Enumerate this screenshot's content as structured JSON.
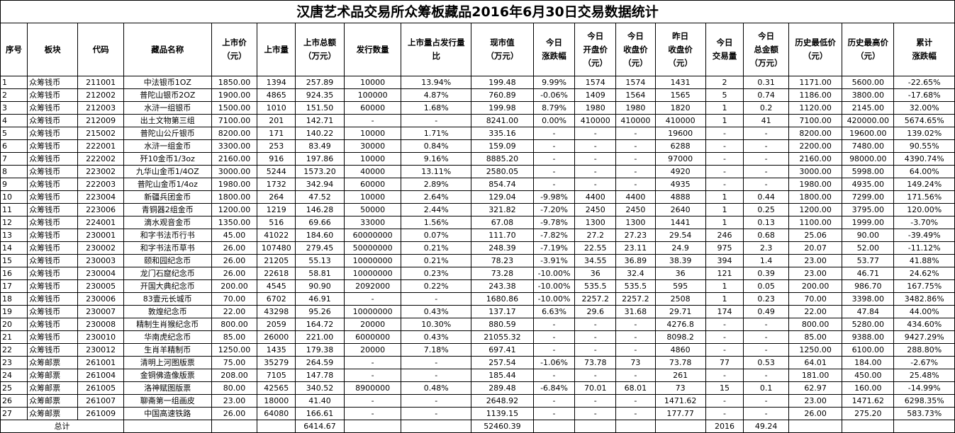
{
  "title": "汉唐艺术品交易所众筹板藏品2016年6月30日交易数据统计",
  "headers": [
    "序号",
    "板块",
    "代码",
    "藏品名称",
    "上市价\n（元）",
    "上市量",
    "上市总额\n（万元）",
    "发行数量",
    "上市量占发行量\n比",
    "现市值\n（万元）",
    "今日\n涨跌幅",
    "今日\n开盘价\n（元）",
    "今日\n收盘价\n（元）",
    "昨日\n收盘价\n（元）",
    "今日\n交易量",
    "今日\n总金额\n（万元）",
    "历史最低价\n（元）",
    "历史最高价\n（元）",
    "累计\n涨跌幅"
  ],
  "rows": [
    [
      "1",
      "众筹钱币",
      "211001",
      "中法银币1OZ",
      "1850.00",
      "1394",
      "257.89",
      "10000",
      "13.94%",
      "199.48",
      "9.99%",
      "1574",
      "1574",
      "1431",
      "2",
      "0.31",
      "1171.00",
      "5600.00",
      "-22.65%"
    ],
    [
      "2",
      "众筹钱币",
      "212002",
      "普陀山银币2OZ",
      "1900.00",
      "4865",
      "924.35",
      "100000",
      "4.87%",
      "760.89",
      "-0.06%",
      "1409",
      "1564",
      "1565",
      "5",
      "0.74",
      "1186.00",
      "3800.00",
      "-17.68%"
    ],
    [
      "3",
      "众筹钱币",
      "212003",
      "水浒一组银币",
      "1500.00",
      "1010",
      "151.50",
      "60000",
      "1.68%",
      "199.98",
      "8.79%",
      "1980",
      "1980",
      "1820",
      "1",
      "0.2",
      "1120.00",
      "2145.00",
      "32.00%"
    ],
    [
      "4",
      "众筹钱币",
      "212009",
      "出土文物第三组",
      "7100.00",
      "201",
      "142.71",
      "-",
      "-",
      "8241.00",
      "0.00%",
      "410000",
      "410000",
      "410000",
      "1",
      "41",
      "7100.00",
      "420000.00",
      "5674.65%"
    ],
    [
      "5",
      "众筹钱币",
      "215002",
      "普陀山公斤银币",
      "8200.00",
      "171",
      "140.22",
      "10000",
      "1.71%",
      "335.16",
      "-",
      "-",
      "-",
      "19600",
      "-",
      "-",
      "8200.00",
      "19600.00",
      "139.02%"
    ],
    [
      "6",
      "众筹钱币",
      "222001",
      "水浒一组金币",
      "3300.00",
      "253",
      "83.49",
      "30000",
      "0.84%",
      "159.09",
      "-",
      "-",
      "-",
      "6288",
      "-",
      "-",
      "2200.00",
      "7480.00",
      "90.55%"
    ],
    [
      "7",
      "众筹钱币",
      "222002",
      "歼10金币1/3oz",
      "2160.00",
      "916",
      "197.86",
      "10000",
      "9.16%",
      "8885.20",
      "-",
      "-",
      "-",
      "97000",
      "-",
      "-",
      "2160.00",
      "98000.00",
      "4390.74%"
    ],
    [
      "8",
      "众筹钱币",
      "223002",
      "九华山金币1/4OZ",
      "3000.00",
      "5244",
      "1573.20",
      "40000",
      "13.11%",
      "2580.05",
      "-",
      "-",
      "-",
      "4920",
      "-",
      "-",
      "3000.00",
      "5998.00",
      "64.00%"
    ],
    [
      "9",
      "众筹钱币",
      "222003",
      "普陀山金币1/4oz",
      "1980.00",
      "1732",
      "342.94",
      "60000",
      "2.89%",
      "854.74",
      "-",
      "-",
      "-",
      "4935",
      "-",
      "-",
      "1980.00",
      "4935.00",
      "149.24%"
    ],
    [
      "10",
      "众筹钱币",
      "223004",
      "新疆兵团金币",
      "1800.00",
      "264",
      "47.52",
      "10000",
      "2.64%",
      "129.04",
      "-9.98%",
      "4400",
      "4400",
      "4888",
      "1",
      "0.44",
      "1800.00",
      "7299.00",
      "171.56%"
    ],
    [
      "11",
      "众筹钱币",
      "223006",
      "青铜器2组金币",
      "1200.00",
      "1219",
      "146.28",
      "50000",
      "2.44%",
      "321.82",
      "-7.20%",
      "2450",
      "2450",
      "2640",
      "1",
      "0.25",
      "1200.00",
      "3795.00",
      "120.00%"
    ],
    [
      "12",
      "众筹钱币",
      "224001",
      "滴水观音金币",
      "1350.00",
      "516",
      "69.66",
      "33000",
      "1.56%",
      "67.08",
      "-9.78%",
      "1300",
      "1300",
      "1441",
      "1",
      "0.13",
      "1100.00",
      "1999.00",
      "-3.70%"
    ],
    [
      "13",
      "众筹钱币",
      "230001",
      "和字书法币行书",
      "45.00",
      "41022",
      "184.60",
      "60000000",
      "0.07%",
      "111.70",
      "-7.82%",
      "27.2",
      "27.23",
      "29.54",
      "246",
      "0.68",
      "25.06",
      "90.00",
      "-39.49%"
    ],
    [
      "14",
      "众筹钱币",
      "230002",
      "和字书法币草书",
      "26.00",
      "107480",
      "279.45",
      "50000000",
      "0.21%",
      "248.39",
      "-7.19%",
      "22.55",
      "23.11",
      "24.9",
      "975",
      "2.3",
      "20.07",
      "52.00",
      "-11.12%"
    ],
    [
      "15",
      "众筹钱币",
      "230003",
      "颐和园纪念币",
      "26.00",
      "21205",
      "55.13",
      "10000000",
      "0.21%",
      "78.23",
      "-3.91%",
      "34.55",
      "36.89",
      "38.39",
      "394",
      "1.4",
      "23.00",
      "53.77",
      "41.88%"
    ],
    [
      "16",
      "众筹钱币",
      "230004",
      "龙门石窟纪念币",
      "26.00",
      "22618",
      "58.81",
      "10000000",
      "0.23%",
      "73.28",
      "-10.00%",
      "36",
      "32.4",
      "36",
      "121",
      "0.39",
      "23.00",
      "46.71",
      "24.62%"
    ],
    [
      "17",
      "众筹钱币",
      "230005",
      "开国大典纪念币",
      "200.00",
      "4545",
      "90.90",
      "2092000",
      "0.22%",
      "243.38",
      "-10.00%",
      "535.5",
      "535.5",
      "595",
      "1",
      "0.05",
      "200.00",
      "986.70",
      "167.75%"
    ],
    [
      "18",
      "众筹钱币",
      "230006",
      "83壹元长城币",
      "70.00",
      "6702",
      "46.91",
      "-",
      "-",
      "1680.86",
      "-10.00%",
      "2257.2",
      "2257.2",
      "2508",
      "1",
      "0.23",
      "70.00",
      "3398.00",
      "3482.86%"
    ],
    [
      "19",
      "众筹钱币",
      "230007",
      "敦煌纪念币",
      "22.00",
      "43298",
      "95.26",
      "10000000",
      "0.43%",
      "137.17",
      "6.63%",
      "29.6",
      "31.68",
      "29.71",
      "174",
      "0.49",
      "22.00",
      "47.84",
      "44.00%"
    ],
    [
      "20",
      "众筹钱币",
      "230008",
      "精制生肖猴纪念币",
      "800.00",
      "2059",
      "164.72",
      "20000",
      "10.30%",
      "880.59",
      "-",
      "-",
      "-",
      "4276.8",
      "-",
      "-",
      "800.00",
      "5280.00",
      "434.60%"
    ],
    [
      "21",
      "众筹钱币",
      "230010",
      "华南虎纪念币",
      "85.00",
      "26000",
      "221.00",
      "6000000",
      "0.43%",
      "21055.32",
      "-",
      "-",
      "-",
      "8098.2",
      "-",
      "-",
      "85.00",
      "9388.00",
      "9427.29%"
    ],
    [
      "22",
      "众筹钱币",
      "230012",
      "生肖羊精制币",
      "1250.00",
      "1435",
      "179.38",
      "20000",
      "7.18%",
      "697.41",
      "-",
      "-",
      "-",
      "4860",
      "-",
      "-",
      "1250.00",
      "6100.00",
      "288.80%"
    ],
    [
      "23",
      "众筹邮票",
      "261001",
      "清明上河图版票",
      "75.00",
      "35279",
      "264.59",
      "-",
      "-",
      "257.54",
      "-1.06%",
      "73.78",
      "73",
      "73.78",
      "77",
      "0.53",
      "64.01",
      "184.00",
      "-2.67%"
    ],
    [
      "24",
      "众筹邮票",
      "261004",
      "金铜佛造像版票",
      "208.00",
      "7105",
      "147.78",
      "-",
      "-",
      "185.44",
      "-",
      "-",
      "-",
      "261",
      "-",
      "-",
      "181.00",
      "450.00",
      "25.48%"
    ],
    [
      "25",
      "众筹邮票",
      "261005",
      "洛神赋图版票",
      "80.00",
      "42565",
      "340.52",
      "8900000",
      "0.48%",
      "289.48",
      "-6.84%",
      "70.01",
      "68.01",
      "73",
      "15",
      "0.1",
      "62.97",
      "160.00",
      "-14.99%"
    ],
    [
      "26",
      "众筹邮票",
      "261007",
      "聊斋第一组画皮",
      "23.00",
      "18000",
      "41.40",
      "-",
      "-",
      "2648.92",
      "-",
      "-",
      "-",
      "1471.62",
      "-",
      "-",
      "23.00",
      "1471.62",
      "6298.35%"
    ],
    [
      "27",
      "众筹邮票",
      "261009",
      "中国高速铁路",
      "26.00",
      "64080",
      "166.61",
      "-",
      "-",
      "1139.15",
      "-",
      "-",
      "-",
      "177.77",
      "-",
      "-",
      "26.00",
      "275.20",
      "583.73%"
    ]
  ],
  "total": {
    "label": "总计",
    "listing_total": "6414.67",
    "market_value_total": "52460.39",
    "volume_total": "2016",
    "amount_total": "49.24"
  }
}
